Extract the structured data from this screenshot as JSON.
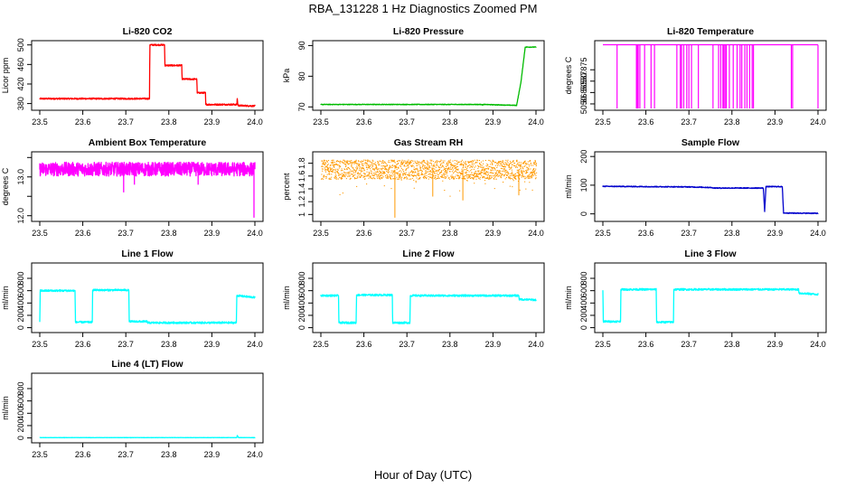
{
  "title": "RBA_131228  1 Hz Diagnostics Zoomed PM",
  "xlabel": "Hour of Day (UTC)",
  "chart_data": [
    {
      "type": "line",
      "title": "Li-820 CO2",
      "ylabel": "Licor ppm",
      "color": "#ff0000",
      "xlim": [
        23.5,
        24.0
      ],
      "ylim": [
        370,
        505
      ],
      "yticks": [
        380,
        420,
        460,
        500
      ],
      "xticks": [
        "23.5",
        "23.6",
        "23.7",
        "23.8",
        "23.9",
        "24.0"
      ],
      "series": [
        {
          "x": [
            23.5,
            23.755,
            23.756,
            23.79,
            23.791,
            23.83,
            23.831,
            23.865,
            23.866,
            23.885,
            23.886,
            23.958,
            23.959,
            23.96,
            23.961,
            24.0
          ],
          "y": [
            390,
            390,
            500,
            500,
            458,
            458,
            430,
            430,
            402,
            402,
            378,
            378,
            390,
            380,
            376,
            375
          ]
        }
      ],
      "noise": {
        "amplitude": 1.5
      }
    },
    {
      "type": "line",
      "title": "Li-820 Pressure",
      "ylabel": "kPa",
      "color": "#00bb00",
      "xlim": [
        23.5,
        24.0
      ],
      "ylim": [
        69.5,
        91
      ],
      "yticks": [
        70,
        80,
        90
      ],
      "xticks": [
        "23.5",
        "23.6",
        "23.7",
        "23.8",
        "23.9",
        "24.0"
      ],
      "series": [
        {
          "x": [
            23.5,
            23.875,
            23.876,
            23.877,
            23.955,
            23.965,
            23.975,
            24.0
          ],
          "y": [
            70.8,
            70.8,
            70.5,
            70.8,
            70.5,
            78,
            89.5,
            89.5
          ]
        }
      ],
      "noise": {
        "amplitude": 0.1
      }
    },
    {
      "type": "line",
      "title": "Li-820 Temperature",
      "ylabel": "degrees C",
      "color": "#ff00ff",
      "xlim": [
        23.5,
        24.0
      ],
      "ylim": [
        50.858,
        50.887
      ],
      "yticks": [
        50.86,
        50.865,
        50.87,
        50.875
      ],
      "xticks": [
        "23.5",
        "23.6",
        "23.7",
        "23.8",
        "23.9",
        "24.0"
      ],
      "series": [
        {
          "x": [
            23.5,
            24.0
          ],
          "y": [
            50.886,
            50.886
          ]
        }
      ],
      "spikes": {
        "low": 50.858,
        "high": 50.886,
        "at": [
          23.533,
          23.578,
          23.58,
          23.582,
          23.586,
          23.597,
          23.612,
          23.62,
          23.672,
          23.68,
          23.683,
          23.688,
          23.695,
          23.7,
          23.706,
          23.722,
          23.756,
          23.769,
          23.774,
          23.779,
          23.781,
          23.784,
          23.787,
          23.794,
          23.803,
          23.812,
          23.819,
          23.823,
          23.83,
          23.835,
          23.841,
          23.847,
          23.85,
          23.938,
          23.941,
          24.0
        ]
      }
    },
    {
      "type": "line",
      "title": "Ambient Box Temperature",
      "ylabel": "degrees C",
      "color": "#ff00ff",
      "xlim": [
        23.5,
        24.0
      ],
      "ylim": [
        11.9,
        13.6
      ],
      "yticks": [
        12.0,
        12.5,
        13.0,
        13.5
      ],
      "ytick_labels": [
        "12.0",
        "",
        "13.0",
        ""
      ],
      "xticks": [
        "23.5",
        "23.6",
        "23.7",
        "23.8",
        "23.9",
        "24.0"
      ],
      "series": [
        {
          "x": [
            23.5,
            24.0
          ],
          "y": [
            13.2,
            13.2
          ]
        }
      ],
      "noise": {
        "amplitude": 0.18,
        "dips": [
          [
            23.695,
            12.6
          ],
          [
            23.72,
            12.8
          ],
          [
            23.868,
            12.8
          ],
          [
            23.998,
            11.95
          ]
        ]
      }
    },
    {
      "type": "scatter",
      "title": "Gas Stream RH",
      "ylabel": "percent",
      "color": "#ff9900",
      "xlim": [
        23.5,
        24.0
      ],
      "ylim": [
        0.92,
        1.95
      ],
      "yticks": [
        1.0,
        1.2,
        1.4,
        1.6,
        1.8
      ],
      "xticks": [
        "23.5",
        "23.6",
        "23.7",
        "23.8",
        "23.9",
        "24.0"
      ],
      "series": [
        {
          "x": [
            23.5,
            24.0
          ],
          "y": [
            1.7,
            1.7
          ]
        }
      ],
      "noise": {
        "amplitude": 0.15,
        "dips": [
          [
            23.672,
            0.95
          ],
          [
            23.76,
            1.28
          ],
          [
            23.83,
            1.22
          ],
          [
            23.96,
            1.3
          ]
        ]
      }
    },
    {
      "type": "line",
      "title": "Sample Flow",
      "ylabel": "ml/min",
      "color": "#0000cc",
      "xlim": [
        23.5,
        24.0
      ],
      "ylim": [
        -20,
        210
      ],
      "yticks": [
        0,
        100,
        200
      ],
      "xticks": [
        "23.5",
        "23.6",
        "23.7",
        "23.8",
        "23.9",
        "24.0"
      ],
      "series": [
        {
          "x": [
            23.5,
            23.7,
            23.75,
            23.76,
            23.873,
            23.876,
            23.879,
            23.882,
            23.917,
            23.92,
            24.0
          ],
          "y": [
            96,
            94,
            92,
            90,
            90,
            8,
            95,
            95,
            95,
            3,
            2
          ]
        }
      ],
      "noise": {
        "amplitude": 1.5
      }
    },
    {
      "type": "line",
      "title": "Line 1 Flow",
      "ylabel": "ml/min",
      "color": "#00ffff",
      "xlim": [
        23.5,
        24.0
      ],
      "ylim": [
        -50,
        1020
      ],
      "yticks": [
        0,
        200,
        400,
        600,
        800
      ],
      "xticks": [
        "23.5",
        "23.6",
        "23.7",
        "23.8",
        "23.9",
        "24.0"
      ],
      "series": [
        {
          "x": [
            23.5,
            23.501,
            23.582,
            23.583,
            23.622,
            23.623,
            23.707,
            23.708,
            23.75,
            23.751,
            23.957,
            23.958,
            24.0
          ],
          "y": [
            100,
            600,
            600,
            90,
            90,
            610,
            610,
            100,
            100,
            80,
            80,
            520,
            490
          ]
        }
      ],
      "noise": {
        "amplitude": 15
      }
    },
    {
      "type": "line",
      "title": "Line 2 Flow",
      "ylabel": "ml/min",
      "color": "#00ffff",
      "xlim": [
        23.5,
        24.0
      ],
      "ylim": [
        -50,
        1020
      ],
      "yticks": [
        0,
        200,
        400,
        600,
        800
      ],
      "xticks": [
        "23.5",
        "23.6",
        "23.7",
        "23.8",
        "23.9",
        "24.0"
      ],
      "series": [
        {
          "x": [
            23.5,
            23.541,
            23.542,
            23.582,
            23.583,
            23.666,
            23.667,
            23.707,
            23.708,
            23.96,
            23.961,
            24.0
          ],
          "y": [
            520,
            520,
            80,
            80,
            530,
            530,
            80,
            80,
            520,
            520,
            460,
            450
          ]
        }
      ],
      "noise": {
        "amplitude": 15
      }
    },
    {
      "type": "line",
      "title": "Line 3 Flow",
      "ylabel": "ml/min",
      "color": "#00ffff",
      "xlim": [
        23.5,
        24.0
      ],
      "ylim": [
        -50,
        1020
      ],
      "yticks": [
        0,
        200,
        400,
        600,
        800
      ],
      "xticks": [
        "23.5",
        "23.6",
        "23.7",
        "23.8",
        "23.9",
        "24.0"
      ],
      "series": [
        {
          "x": [
            23.5,
            23.501,
            23.541,
            23.542,
            23.624,
            23.625,
            23.664,
            23.665,
            23.955,
            23.956,
            24.0
          ],
          "y": [
            600,
            100,
            100,
            620,
            620,
            90,
            90,
            620,
            620,
            560,
            540
          ]
        }
      ],
      "noise": {
        "amplitude": 15
      }
    },
    {
      "type": "line",
      "title": "Line 4 (LT) Flow",
      "ylabel": "ml/min",
      "color": "#00ffff",
      "xlim": [
        23.5,
        24.0
      ],
      "ylim": [
        -50,
        1020
      ],
      "yticks": [
        0,
        200,
        400,
        600,
        800
      ],
      "xticks": [
        "23.5",
        "23.6",
        "23.7",
        "23.8",
        "23.9",
        "24.0"
      ],
      "series": [
        {
          "x": [
            23.5,
            23.958,
            23.959,
            23.962,
            24.0
          ],
          "y": [
            5,
            5,
            40,
            5,
            5
          ]
        }
      ],
      "noise": {
        "amplitude": 2
      }
    }
  ]
}
